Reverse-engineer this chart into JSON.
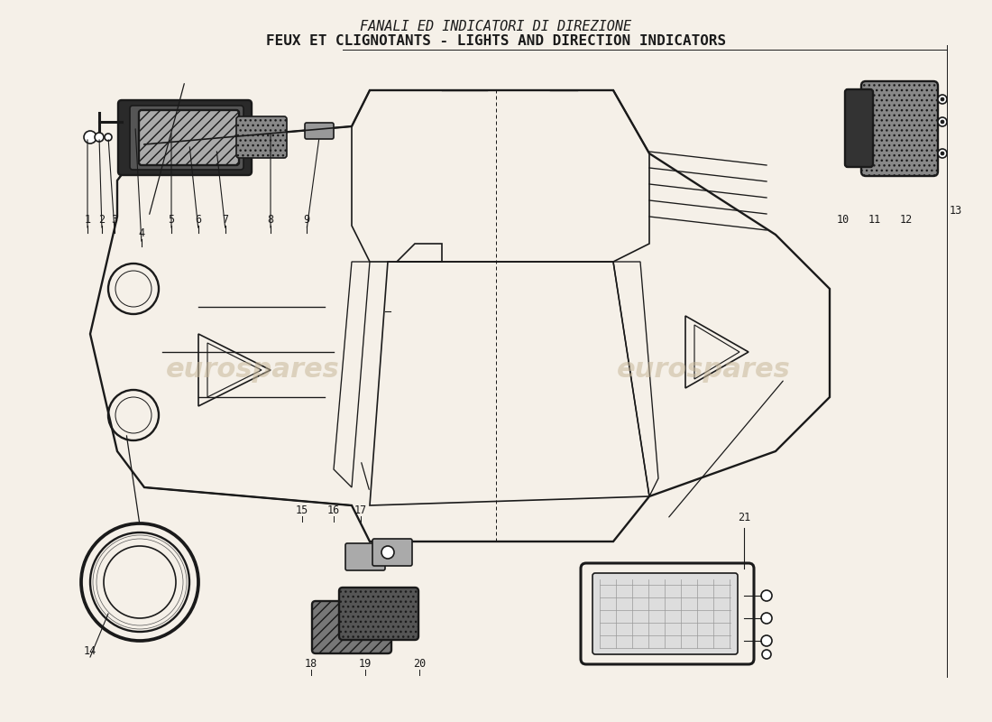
{
  "title_line1": "FANALI ED INDICATORI DI DIREZIONE",
  "title_line2": "FEUX ET CLIGNOTANTS - LIGHTS AND DIRECTION INDICATORS",
  "bg_color": "#f5f0e8",
  "text_color": "#1a1a1a",
  "watermark1": "eurospares",
  "watermark2": "eurospares",
  "part_numbers_top": [
    "1",
    "2",
    "3",
    "4",
    "5",
    "6",
    "7",
    "8",
    "9"
  ],
  "part_numbers_top_right": [
    "10",
    "11",
    "12",
    "13"
  ],
  "part_numbers_bottom": [
    "14",
    "15",
    "16",
    "17",
    "18",
    "19",
    "20",
    "21"
  ],
  "title_fontsize": 11,
  "watermark_fontsize": 22,
  "figsize": [
    11.0,
    8.0
  ],
  "dpi": 100
}
